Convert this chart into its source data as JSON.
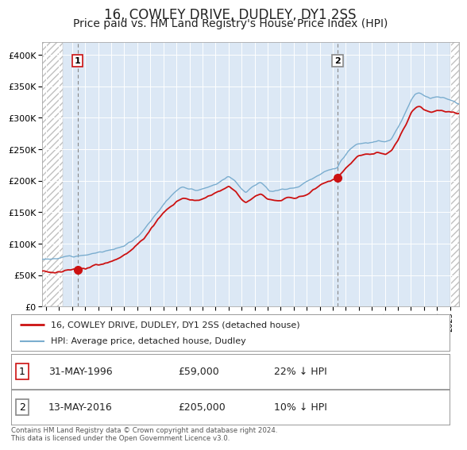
{
  "title": "16, COWLEY DRIVE, DUDLEY, DY1 2SS",
  "subtitle": "Price paid vs. HM Land Registry's House Price Index (HPI)",
  "sale1_date": "31-MAY-1996",
  "sale1_price": 59000,
  "sale1_label": "22% ↓ HPI",
  "sale1_year": 1996.42,
  "sale2_date": "13-MAY-2016",
  "sale2_price": 205000,
  "sale2_label": "10% ↓ HPI",
  "sale2_year": 2016.37,
  "legend_line1": "16, COWLEY DRIVE, DUDLEY, DY1 2SS (detached house)",
  "legend_line2": "HPI: Average price, detached house, Dudley",
  "annotation1": "1",
  "annotation2": "2",
  "footnote": "Contains HM Land Registry data © Crown copyright and database right 2024.\nThis data is licensed under the Open Government Licence v3.0.",
  "hpi_color": "#7aadcf",
  "price_color": "#cc1111",
  "dot_color": "#cc1111",
  "vline_color": "#888888",
  "plot_bg": "#dce8f5",
  "hatch_bg": "#e8e8e8",
  "ylim": [
    0,
    420000
  ],
  "yticks": [
    0,
    50000,
    100000,
    150000,
    200000,
    250000,
    300000,
    350000,
    400000
  ],
  "xlim_start": 1993.7,
  "xlim_end": 2025.7,
  "hatch_left_end": 1995.3,
  "hatch_right_start": 2025.0,
  "title_fontsize": 12,
  "subtitle_fontsize": 10
}
